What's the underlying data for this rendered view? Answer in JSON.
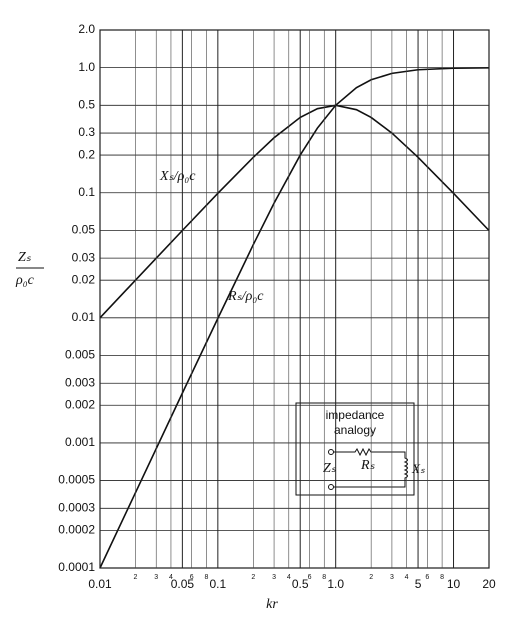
{
  "chart_data": {
    "type": "line",
    "log_x": true,
    "log_y": true,
    "grid": true,
    "x_label": "kr",
    "y_label_numerator": "Zₛ",
    "y_label_denominator": "ρ₀c",
    "xlim": [
      0.01,
      20
    ],
    "ylim": [
      0.0001,
      2.0
    ],
    "xticks": [
      0.01,
      0.05,
      0.1,
      0.5,
      {
        "value": 1,
        "label": "1.0"
      },
      5,
      10,
      20
    ],
    "xminor": [
      {
        "value": 0.02,
        "label": "2"
      },
      {
        "value": 0.03,
        "label": "3"
      },
      {
        "value": 0.04,
        "label": "4"
      },
      {
        "value": 0.06,
        "label": "6"
      },
      {
        "value": 0.08,
        "label": "8"
      },
      {
        "value": 0.2,
        "label": "2"
      },
      {
        "value": 0.3,
        "label": "3"
      },
      {
        "value": 0.4,
        "label": "4"
      },
      {
        "value": 0.6,
        "label": "6"
      },
      {
        "value": 0.8,
        "label": "8"
      },
      {
        "value": 2,
        "label": "2"
      },
      {
        "value": 3,
        "label": "3"
      },
      {
        "value": 4,
        "label": "4"
      },
      {
        "value": 6,
        "label": "6"
      },
      {
        "value": 8,
        "label": "8"
      }
    ],
    "yticks": [
      {
        "value": 2,
        "label": "2.0"
      },
      {
        "value": 1,
        "label": "1.0"
      },
      0.5,
      0.3,
      0.2,
      0.1,
      0.05,
      0.03,
      0.02,
      0.01,
      0.005,
      0.003,
      0.002,
      0.001,
      0.0005,
      0.0003,
      0.0002,
      0.0001
    ],
    "x": [
      0.01,
      0.02,
      0.05,
      0.1,
      0.2,
      0.3,
      0.5,
      0.7,
      1,
      1.5,
      2,
      3,
      5,
      10,
      20
    ],
    "series": [
      {
        "name": "Xₛ/ρ₀c",
        "color": "#111111",
        "values": [
          0.01,
          0.02,
          0.0499,
          0.099,
          0.192,
          0.275,
          0.4,
          0.47,
          0.5,
          0.4615,
          0.4,
          0.3,
          0.192,
          0.099,
          0.0499
        ]
      },
      {
        "name": "Rₛ/ρ₀c",
        "color": "#111111",
        "values": [
          0.0001,
          0.0004,
          0.0025,
          0.0099,
          0.0385,
          0.0826,
          0.2,
          0.329,
          0.5,
          0.692,
          0.8,
          0.9,
          0.962,
          0.99,
          0.9975
        ]
      }
    ],
    "inset": {
      "title_line1": "impedance",
      "title_line2": "analogy",
      "z": "Zₛ",
      "r": "Rₛ",
      "x": "Xₛ"
    }
  }
}
